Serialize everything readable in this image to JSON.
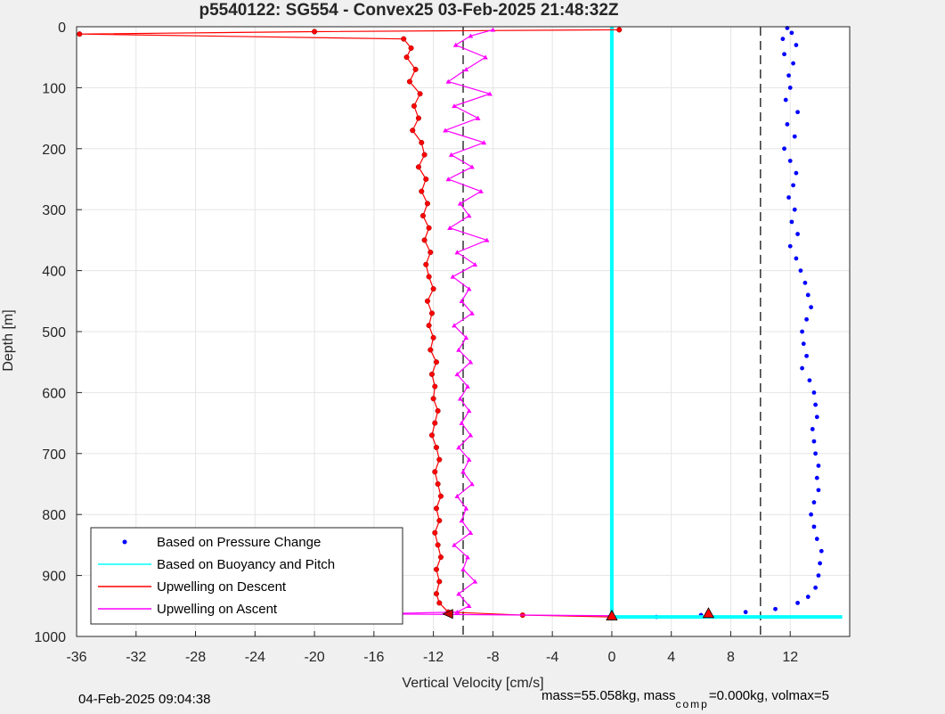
{
  "chart_data": {
    "type": "scatter",
    "title": "p5540122: SG554 - Convex25 03-Feb-2025 21:48:32Z",
    "xlabel": "Vertical Velocity [cm/s]",
    "ylabel": "Depth [m]",
    "xlim": [
      -36,
      16
    ],
    "ylim": [
      0,
      1000
    ],
    "y_reversed": true,
    "grid": true,
    "xticks": [
      -36,
      -32,
      -28,
      -24,
      -20,
      -16,
      -12,
      -8,
      -4,
      0,
      4,
      8,
      12
    ],
    "yticks": [
      0,
      100,
      200,
      300,
      400,
      500,
      600,
      700,
      800,
      900,
      1000
    ],
    "legend_position": "bottom-left",
    "reference_lines_x": [
      -10,
      10
    ],
    "series": [
      {
        "name": "Based on Pressure Change",
        "color": "#0000ff",
        "marker": "dot",
        "depth": [
          2,
          10,
          20,
          30,
          45,
          60,
          80,
          100,
          120,
          140,
          160,
          180,
          200,
          220,
          240,
          260,
          280,
          300,
          320,
          340,
          360,
          380,
          400,
          420,
          440,
          460,
          480,
          500,
          520,
          540,
          560,
          580,
          600,
          620,
          640,
          660,
          680,
          700,
          720,
          740,
          760,
          780,
          800,
          820,
          840,
          860,
          880,
          900,
          920,
          935,
          945,
          955,
          960,
          965,
          968
        ],
        "velocity": [
          11.8,
          12.1,
          11.5,
          12.4,
          11.6,
          12.2,
          11.9,
          12.0,
          11.7,
          12.5,
          11.8,
          12.3,
          11.6,
          12.0,
          12.4,
          12.2,
          11.9,
          12.3,
          12.1,
          12.5,
          12.0,
          12.4,
          12.7,
          13.0,
          13.2,
          13.4,
          13.1,
          12.8,
          12.9,
          13.1,
          12.8,
          13.3,
          13.6,
          13.7,
          13.8,
          13.5,
          13.6,
          13.7,
          13.9,
          13.8,
          13.9,
          13.6,
          13.4,
          13.6,
          13.8,
          14.1,
          14.0,
          13.9,
          13.7,
          13.2,
          12.5,
          11.0,
          9.0,
          6.0,
          3.0
        ]
      },
      {
        "name": "Based on Buoyancy and Pitch",
        "color": "#00ffff",
        "marker": "line",
        "depth": [
          0,
          968,
          968
        ],
        "velocity": [
          0,
          0,
          15.5
        ]
      },
      {
        "name": "Upwelling on Descent",
        "color": "#ff0000",
        "marker": "circle",
        "depth": [
          5,
          8,
          12,
          20,
          35,
          50,
          70,
          90,
          110,
          130,
          150,
          170,
          190,
          210,
          230,
          250,
          270,
          290,
          310,
          330,
          350,
          370,
          390,
          410,
          430,
          450,
          470,
          490,
          510,
          530,
          550,
          570,
          590,
          610,
          630,
          650,
          670,
          690,
          710,
          730,
          750,
          770,
          790,
          810,
          830,
          850,
          870,
          890,
          910,
          930,
          945,
          960,
          965,
          968
        ],
        "velocity": [
          0.5,
          -20.0,
          -35.8,
          -14.0,
          -13.5,
          -13.8,
          -13.2,
          -13.6,
          -12.9,
          -13.3,
          -13.0,
          -13.4,
          -12.8,
          -12.6,
          -13.0,
          -12.5,
          -12.8,
          -12.4,
          -12.7,
          -12.3,
          -12.6,
          -12.2,
          -12.5,
          -12.3,
          -12.0,
          -12.4,
          -12.1,
          -12.3,
          -12.0,
          -12.2,
          -11.8,
          -12.1,
          -11.9,
          -12.0,
          -11.7,
          -11.9,
          -12.1,
          -11.8,
          -11.6,
          -11.9,
          -11.7,
          -11.5,
          -11.8,
          -11.6,
          -11.9,
          -11.7,
          -11.5,
          -11.8,
          -11.6,
          -11.8,
          -11.6,
          -11.0,
          -6.0,
          0
        ]
      },
      {
        "name": "Upwelling on Ascent",
        "color": "#ff00ff",
        "marker": "triangle",
        "depth": [
          5,
          15,
          30,
          50,
          70,
          90,
          110,
          130,
          150,
          170,
          190,
          210,
          230,
          250,
          270,
          290,
          310,
          330,
          350,
          370,
          390,
          410,
          430,
          450,
          470,
          490,
          510,
          530,
          550,
          570,
          590,
          610,
          630,
          650,
          670,
          690,
          710,
          730,
          750,
          770,
          790,
          810,
          830,
          850,
          870,
          890,
          910,
          930,
          950,
          960,
          963,
          966
        ],
        "velocity": [
          -8.0,
          -9.5,
          -10.5,
          -8.5,
          -9.8,
          -11.0,
          -8.2,
          -10.6,
          -9.0,
          -11.2,
          -8.6,
          -10.8,
          -9.4,
          -11.0,
          -8.8,
          -10.2,
          -9.6,
          -10.9,
          -8.4,
          -10.4,
          -9.2,
          -10.7,
          -9.6,
          -10.1,
          -9.4,
          -10.6,
          -9.8,
          -10.3,
          -9.5,
          -10.4,
          -9.7,
          -10.2,
          -9.6,
          -10.1,
          -9.5,
          -10.3,
          -9.6,
          -10.0,
          -9.4,
          -10.4,
          -9.8,
          -10.1,
          -9.5,
          -10.6,
          -9.7,
          -10.0,
          -9.2,
          -10.3,
          -9.6,
          -10.4,
          -16.0,
          0
        ]
      }
    ],
    "special_markers": [
      {
        "name": "up-red-triangle",
        "velocity": 6.5,
        "depth": 962
      },
      {
        "name": "bottom-red-triangle",
        "velocity": 0,
        "depth": 966
      },
      {
        "name": "bottom-descent-marker",
        "velocity": -11,
        "depth": 963
      }
    ]
  },
  "footer": {
    "date": "04-Feb-2025 09:04:38",
    "mass_prefix": "mass=55.058kg, mass",
    "mass_sub": "comp",
    "mass_suffix": "=0.000kg, volmax=5"
  }
}
